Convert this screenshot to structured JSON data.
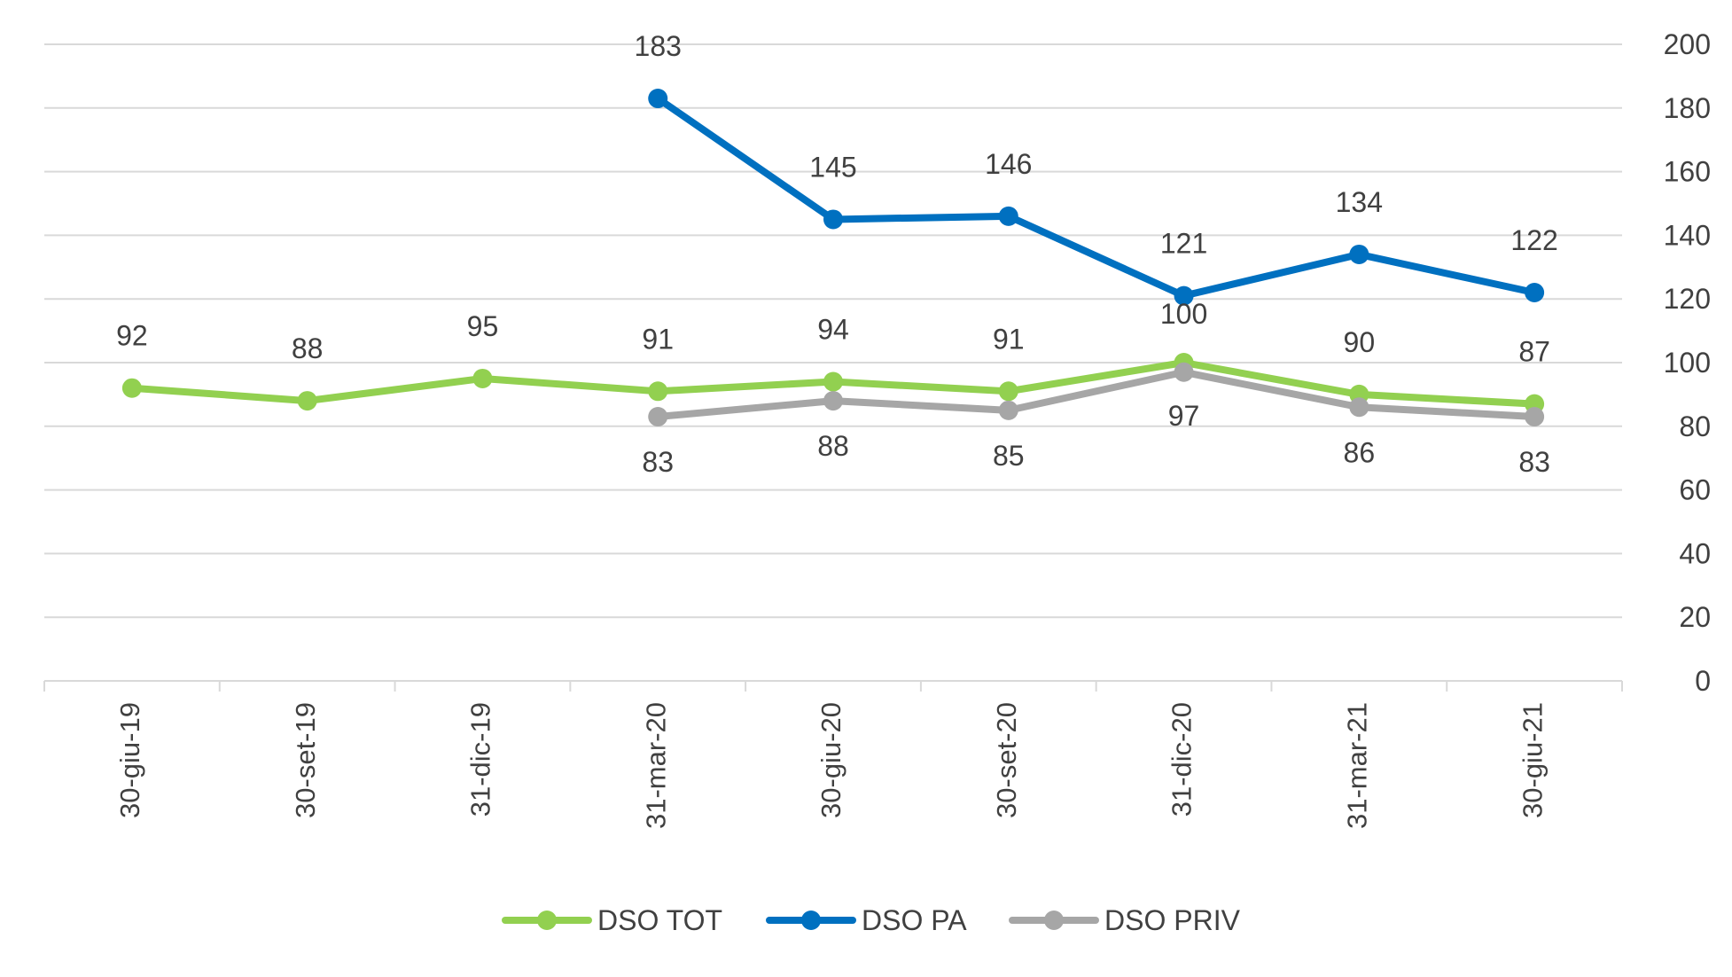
{
  "chart_data": {
    "type": "line",
    "categories": [
      "30-giu-19",
      "30-set-19",
      "31-dic-19",
      "31-mar-20",
      "30-giu-20",
      "30-set-20",
      "31-dic-20",
      "31-mar-21",
      "30-giu-21"
    ],
    "series": [
      {
        "name": "DSO TOT",
        "color": "#92D050",
        "values": [
          92,
          88,
          95,
          91,
          94,
          91,
          100,
          90,
          87
        ],
        "label_position": "above"
      },
      {
        "name": "DSO PA",
        "color": "#0070C0",
        "values": [
          null,
          null,
          null,
          183,
          145,
          146,
          121,
          134,
          122
        ],
        "label_position": "above"
      },
      {
        "name": "DSO PRIV",
        "color": "#A6A6A6",
        "values": [
          null,
          null,
          null,
          83,
          88,
          85,
          97,
          86,
          83
        ],
        "label_position": "below"
      }
    ],
    "y_axis": {
      "side": "right",
      "min": 0,
      "max": 200,
      "ticks": [
        "0",
        "20",
        "40",
        "60",
        "80",
        "100",
        "120",
        "140",
        "160",
        "180",
        "200"
      ]
    },
    "xlabel": "",
    "ylabel": "",
    "title": "",
    "grid": true,
    "legend": {
      "position": "bottom",
      "entries": [
        "DSO TOT",
        "DSO PA",
        "DSO PRIV"
      ]
    }
  }
}
